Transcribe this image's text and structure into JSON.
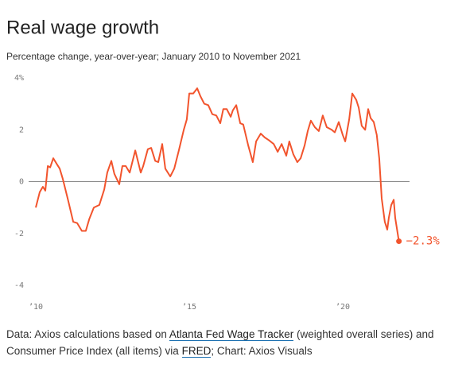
{
  "chart_data": {
    "type": "line",
    "title": "Real wage growth",
    "subtitle": "Percentage change, year-over-year; January 2010 to November 2021",
    "x": [
      2010.0,
      2010.13,
      2010.23,
      2010.31,
      2010.39,
      2010.47,
      2010.57,
      2010.7,
      2010.78,
      2010.88,
      2011.04,
      2011.22,
      2011.35,
      2011.5,
      2011.63,
      2011.74,
      2011.89,
      2012.07,
      2012.23,
      2012.33,
      2012.46,
      2012.56,
      2012.72,
      2012.82,
      2012.93,
      2013.06,
      2013.24,
      2013.42,
      2013.5,
      2013.65,
      2013.76,
      2013.89,
      2013.99,
      2014.12,
      2014.22,
      2014.38,
      2014.51,
      2014.66,
      2014.82,
      2014.92,
      2015.0,
      2015.13,
      2015.26,
      2015.36,
      2015.49,
      2015.62,
      2015.75,
      2015.88,
      2016.01,
      2016.11,
      2016.22,
      2016.35,
      2016.42,
      2016.53,
      2016.66,
      2016.76,
      2016.92,
      2017.07,
      2017.18,
      2017.33,
      2017.46,
      2017.59,
      2017.75,
      2017.88,
      2018.01,
      2018.16,
      2018.26,
      2018.39,
      2018.52,
      2018.63,
      2018.76,
      2018.86,
      2018.96,
      2019.09,
      2019.22,
      2019.35,
      2019.48,
      2019.64,
      2019.74,
      2019.87,
      2020.0,
      2020.08,
      2020.21,
      2020.31,
      2020.44,
      2020.52,
      2020.62,
      2020.73,
      2020.83,
      2020.91,
      2021.01,
      2021.11,
      2021.19,
      2021.27,
      2021.37,
      2021.45,
      2021.5,
      2021.58,
      2021.66,
      2021.71,
      2021.79,
      2021.83
    ],
    "series": [
      {
        "color": "#f2542d",
        "values": [
          -1.0,
          -0.4,
          -0.2,
          -0.35,
          0.6,
          0.55,
          0.9,
          0.65,
          0.5,
          0.1,
          -0.65,
          -1.55,
          -1.6,
          -1.9,
          -1.9,
          -1.45,
          -1.0,
          -0.9,
          -0.3,
          0.35,
          0.8,
          0.3,
          -0.1,
          0.6,
          0.6,
          0.35,
          1.2,
          0.35,
          0.6,
          1.25,
          1.3,
          0.8,
          0.75,
          1.45,
          0.5,
          0.2,
          0.5,
          1.2,
          2.0,
          2.4,
          3.4,
          3.4,
          3.6,
          3.3,
          3.0,
          2.95,
          2.6,
          2.55,
          2.25,
          2.8,
          2.8,
          2.5,
          2.75,
          2.95,
          2.25,
          2.2,
          1.4,
          0.75,
          1.55,
          1.85,
          1.7,
          1.6,
          1.45,
          1.15,
          1.45,
          1.0,
          1.55,
          1.05,
          0.75,
          0.9,
          1.4,
          1.95,
          2.35,
          2.1,
          1.95,
          2.55,
          2.1,
          2.0,
          1.9,
          2.3,
          1.8,
          1.55,
          2.4,
          3.4,
          3.15,
          2.85,
          2.15,
          2.0,
          2.8,
          2.45,
          2.3,
          1.8,
          0.9,
          -0.65,
          -1.55,
          -1.85,
          -1.4,
          -0.9,
          -0.7,
          -1.4,
          -2.0,
          -2.3
        ]
      }
    ],
    "end_label": "−2.3%",
    "xlim": [
      2009.9,
      2022.2
    ],
    "xticks": [
      {
        "value": 2010,
        "label": "’10"
      },
      {
        "value": 2015,
        "label": "’15"
      },
      {
        "value": 2020,
        "label": "’20"
      }
    ],
    "ylim": [
      -4,
      4
    ],
    "yticks": [
      {
        "value": 4,
        "label": "4%"
      },
      2,
      0,
      -2,
      -4
    ],
    "zero_line": true
  },
  "footer": {
    "parts": [
      {
        "text": "Data: Axios calculations based on ",
        "link": false
      },
      {
        "text": "Atlanta Fed Wage Tracker",
        "link": true
      },
      {
        "text": " (weighted overall series) and Consumer Price Index (all items) via ",
        "link": false
      },
      {
        "text": "FRED",
        "link": true
      },
      {
        "text": "; Chart: Axios Visuals",
        "link": false
      }
    ]
  }
}
